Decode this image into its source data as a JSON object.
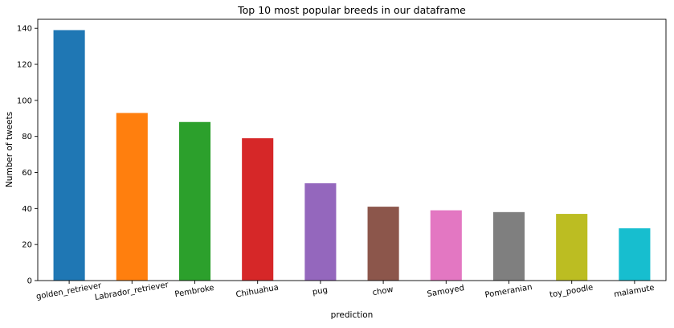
{
  "chart_data": {
    "type": "bar",
    "title": "Top 10 most popular breeds in our dataframe",
    "xlabel": "prediction",
    "ylabel": "Number of tweets",
    "categories": [
      "golden_retriever",
      "Labrador_retriever",
      "Pembroke",
      "Chihuahua",
      "pug",
      "chow",
      "Samoyed",
      "Pomeranian",
      "toy_poodle",
      "malamute"
    ],
    "values": [
      139,
      93,
      88,
      79,
      54,
      41,
      39,
      38,
      37,
      29
    ],
    "colors": [
      "#1f77b4",
      "#ff7f0e",
      "#2ca02c",
      "#d62728",
      "#9467bd",
      "#8c564b",
      "#e377c2",
      "#7f7f7f",
      "#bcbd22",
      "#17becf"
    ],
    "ylim": [
      0,
      145
    ],
    "yticks": [
      0,
      20,
      40,
      60,
      80,
      100,
      120,
      140
    ],
    "grid": false,
    "legend": false
  }
}
